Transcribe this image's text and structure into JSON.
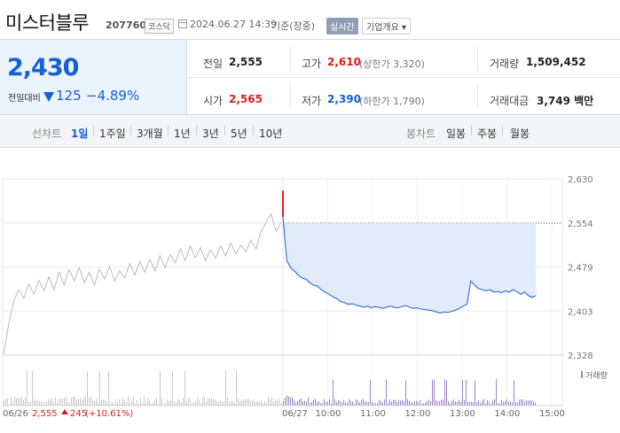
{
  "header": {
    "name": "미스터블루",
    "code": "207760",
    "market": "코스닥",
    "datetime": "2024.06.27 14:39",
    "basis": "기준(장중)",
    "realtime_label": "실시간",
    "company_button": "기업개요 ▾"
  },
  "quote": {
    "price": "2,430",
    "change_label": "전일대비",
    "change": "125",
    "change_pct": "−4.89%",
    "prev_close_label": "전일",
    "prev_close": "2,555",
    "high_label": "고가",
    "high": "2,610",
    "high_sub": "(상한가 3,320)",
    "volume_label": "거래량",
    "volume": "1,509,452",
    "open_label": "시가",
    "open": "2,565",
    "low_label": "저가",
    "low": "2,390",
    "low_sub": "(하한가 1,790)",
    "amount_label": "거래대금",
    "amount": "3,749 백만"
  },
  "tabs": {
    "line_label": "선차트",
    "periods": [
      "1일",
      "1주일",
      "3개월",
      "1년",
      "3년",
      "5년",
      "10년"
    ],
    "active_period": "1일",
    "candle_label": "봉차트",
    "candles": [
      "일봉",
      "주봉",
      "월봉"
    ]
  },
  "chart_data": {
    "type": "line",
    "y_ticks": [
      "2,630",
      "2,554",
      "2,479",
      "2,403",
      "2,328"
    ],
    "ylim": [
      2328,
      2630
    ],
    "prev_close_line": 2554,
    "volume_legend": "거래량",
    "prev_day": {
      "label": "06/26",
      "close": "2,555",
      "change": "245",
      "change_pct": "(+10.61%)",
      "series": [
        2330,
        2380,
        2420,
        2440,
        2425,
        2450,
        2432,
        2456,
        2438,
        2462,
        2440,
        2470,
        2448,
        2475,
        2455,
        2478,
        2452,
        2470,
        2448,
        2476,
        2458,
        2480,
        2455,
        2472,
        2460,
        2485,
        2465,
        2488,
        2470,
        2492,
        2472,
        2498,
        2478,
        2500,
        2486,
        2510,
        2490,
        2515,
        2495,
        2512,
        2490,
        2508,
        2494,
        2515,
        2498,
        2520,
        2502,
        2516,
        2505,
        2525,
        2510,
        2540,
        2555,
        2570,
        2540,
        2556
      ]
    },
    "today": {
      "label": "06/27",
      "time_ticks": [
        "10:00",
        "11:00",
        "12:00",
        "13:00",
        "14:00",
        "15:00"
      ],
      "open": 2565,
      "high": 2610,
      "series": [
        2565,
        2490,
        2478,
        2472,
        2465,
        2460,
        2458,
        2452,
        2448,
        2446,
        2440,
        2436,
        2432,
        2428,
        2425,
        2420,
        2418,
        2415,
        2416,
        2414,
        2412,
        2410,
        2412,
        2409,
        2411,
        2410,
        2408,
        2410,
        2412,
        2410,
        2409,
        2411,
        2413,
        2410,
        2408,
        2409,
        2407,
        2406,
        2405,
        2404,
        2402,
        2400,
        2402,
        2401,
        2403,
        2405,
        2408,
        2412,
        2415,
        2455,
        2448,
        2442,
        2440,
        2438,
        2440,
        2436,
        2437,
        2435,
        2438,
        2436,
        2440,
        2437,
        2432,
        2436,
        2430,
        2427,
        2430
      ]
    }
  }
}
